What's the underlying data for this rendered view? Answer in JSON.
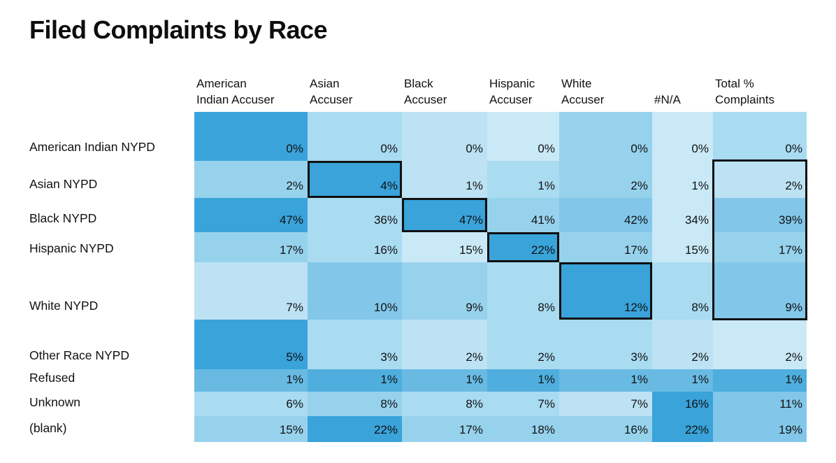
{
  "title": "Filed Complaints by Race",
  "palette": {
    "s1": "#CAE9F7",
    "s2": "#BCE2F4",
    "s3": "#A9DBF1",
    "s4": "#97D2ED",
    "s5": "#82C7E9",
    "s6": "#68BAE3",
    "s7": "#4FAEDE",
    "s8": "#39A3DA",
    "highlight_border": "#101010",
    "text": "#111111",
    "background": "#FFFFFF"
  },
  "chart_data": {
    "type": "heatmap",
    "title": "Filed Complaints by Race",
    "columns": [
      "American Indian Accuser",
      "Asian Accuser",
      "Black Accuser",
      "Hispanic Accuser",
      "White Accuser",
      "#N/A",
      "Total % Complaints"
    ],
    "rows": [
      "American Indian NYPD",
      "Asian NYPD",
      "Black NYPD",
      "Hispanic NYPD",
      "White NYPD",
      "Other Race NYPD",
      "Refused",
      "Unknown",
      "(blank)"
    ],
    "values_percent": [
      [
        0,
        0,
        0,
        0,
        0,
        0,
        0
      ],
      [
        2,
        4,
        1,
        1,
        2,
        1,
        2
      ],
      [
        47,
        36,
        47,
        41,
        42,
        34,
        39
      ],
      [
        17,
        16,
        15,
        22,
        17,
        15,
        17
      ],
      [
        7,
        10,
        9,
        8,
        12,
        8,
        9
      ],
      [
        5,
        3,
        2,
        2,
        3,
        2,
        2
      ],
      [
        1,
        1,
        1,
        1,
        1,
        1,
        1
      ],
      [
        6,
        8,
        8,
        7,
        7,
        16,
        11
      ],
      [
        15,
        22,
        17,
        18,
        16,
        22,
        19
      ]
    ],
    "highlighted_cells": [
      {
        "row": "Asian NYPD",
        "column": "Asian Accuser",
        "value": "4%"
      },
      {
        "row": "Black NYPD",
        "column": "Black Accuser",
        "value": "47%"
      },
      {
        "row": "Hispanic NYPD",
        "column": "Hispanic Accuser",
        "value": "22%"
      },
      {
        "row": "White NYPD",
        "column": "White Accuser",
        "value": "12%"
      }
    ],
    "highlighted_column_box": {
      "column": "Total % Complaints",
      "rows": [
        "Asian NYPD",
        "Black NYPD",
        "Hispanic NYPD",
        "White NYPD"
      ],
      "values": [
        "2%",
        "39%",
        "17%",
        "9%"
      ]
    },
    "legend": "none",
    "color_scale": "light blue (low) to dark blue (high), shaded per row"
  },
  "table": {
    "headers": [
      {
        "line1": "American",
        "line2": "Indian Accuser"
      },
      {
        "line1": "Asian",
        "line2": "Accuser"
      },
      {
        "line1": "Black",
        "line2": "Accuser"
      },
      {
        "line1": "Hispanic",
        "line2": "Accuser"
      },
      {
        "line1": "White",
        "line2": "Accuser"
      },
      {
        "line1": "",
        "line2": "#N/A"
      },
      {
        "line1": "Total %",
        "line2": "Complaints"
      }
    ],
    "rows": [
      {
        "label": "American Indian NYPD",
        "cells": [
          {
            "value": "0%",
            "color": "#39A3DA"
          },
          {
            "value": "0%",
            "color": "#A9DBF1"
          },
          {
            "value": "0%",
            "color": "#BCE2F4"
          },
          {
            "value": "0%",
            "color": "#CAE9F7"
          },
          {
            "value": "0%",
            "color": "#97D2ED"
          },
          {
            "value": "0%",
            "color": "#CAE9F7"
          },
          {
            "value": "0%",
            "color": "#A9DBF1"
          }
        ]
      },
      {
        "label": "Asian NYPD",
        "cells": [
          {
            "value": "2%",
            "color": "#97D2ED"
          },
          {
            "value": "4%",
            "color": "#39A3DA"
          },
          {
            "value": "1%",
            "color": "#BCE2F4"
          },
          {
            "value": "1%",
            "color": "#A9DBF1"
          },
          {
            "value": "2%",
            "color": "#97D2ED"
          },
          {
            "value": "1%",
            "color": "#CAE9F7"
          },
          {
            "value": "2%",
            "color": "#BCE2F4"
          }
        ]
      },
      {
        "label": "Black NYPD",
        "cells": [
          {
            "value": "47%",
            "color": "#39A3DA"
          },
          {
            "value": "36%",
            "color": "#A9DBF1"
          },
          {
            "value": "47%",
            "color": "#39A3DA"
          },
          {
            "value": "41%",
            "color": "#97D2ED"
          },
          {
            "value": "42%",
            "color": "#82C7E9"
          },
          {
            "value": "34%",
            "color": "#CAE9F7"
          },
          {
            "value": "39%",
            "color": "#82C7E9"
          }
        ]
      },
      {
        "label": "Hispanic NYPD",
        "cells": [
          {
            "value": "17%",
            "color": "#97D2ED"
          },
          {
            "value": "16%",
            "color": "#A9DBF1"
          },
          {
            "value": "15%",
            "color": "#CAE9F7"
          },
          {
            "value": "22%",
            "color": "#39A3DA"
          },
          {
            "value": "17%",
            "color": "#97D2ED"
          },
          {
            "value": "15%",
            "color": "#CAE9F7"
          },
          {
            "value": "17%",
            "color": "#97D2ED"
          }
        ]
      },
      {
        "label": "White NYPD",
        "cells": [
          {
            "value": "7%",
            "color": "#BCE2F4"
          },
          {
            "value": "10%",
            "color": "#82C7E9"
          },
          {
            "value": "9%",
            "color": "#97D2ED"
          },
          {
            "value": "8%",
            "color": "#A9DBF1"
          },
          {
            "value": "12%",
            "color": "#39A3DA"
          },
          {
            "value": "8%",
            "color": "#A9DBF1"
          },
          {
            "value": "9%",
            "color": "#82C7E9"
          }
        ]
      },
      {
        "label": "Other Race NYPD",
        "cells": [
          {
            "value": "5%",
            "color": "#39A3DA"
          },
          {
            "value": "3%",
            "color": "#A9DBF1"
          },
          {
            "value": "2%",
            "color": "#BCE2F4"
          },
          {
            "value": "2%",
            "color": "#A9DBF1"
          },
          {
            "value": "3%",
            "color": "#A9DBF1"
          },
          {
            "value": "2%",
            "color": "#BCE2F4"
          },
          {
            "value": "2%",
            "color": "#CAE9F7"
          }
        ]
      },
      {
        "label": "Refused",
        "cells": [
          {
            "value": "1%",
            "color": "#68BAE3"
          },
          {
            "value": "1%",
            "color": "#4FAEDE"
          },
          {
            "value": "1%",
            "color": "#68BAE3"
          },
          {
            "value": "1%",
            "color": "#4FAEDE"
          },
          {
            "value": "1%",
            "color": "#68BAE3"
          },
          {
            "value": "1%",
            "color": "#68BAE3"
          },
          {
            "value": "1%",
            "color": "#4FAEDE"
          }
        ]
      },
      {
        "label": "Unknown",
        "cells": [
          {
            "value": "6%",
            "color": "#A9DBF1"
          },
          {
            "value": "8%",
            "color": "#97D2ED"
          },
          {
            "value": "8%",
            "color": "#A9DBF1"
          },
          {
            "value": "7%",
            "color": "#A9DBF1"
          },
          {
            "value": "7%",
            "color": "#BCE2F4"
          },
          {
            "value": "16%",
            "color": "#39A3DA"
          },
          {
            "value": "11%",
            "color": "#82C7E9"
          }
        ]
      },
      {
        "label": "(blank)",
        "cells": [
          {
            "value": "15%",
            "color": "#97D2ED"
          },
          {
            "value": "22%",
            "color": "#39A3DA"
          },
          {
            "value": "17%",
            "color": "#97D2ED"
          },
          {
            "value": "18%",
            "color": "#97D2ED"
          },
          {
            "value": "16%",
            "color": "#97D2ED"
          },
          {
            "value": "22%",
            "color": "#39A3DA"
          },
          {
            "value": "19%",
            "color": "#82C7E9"
          }
        ]
      }
    ]
  }
}
